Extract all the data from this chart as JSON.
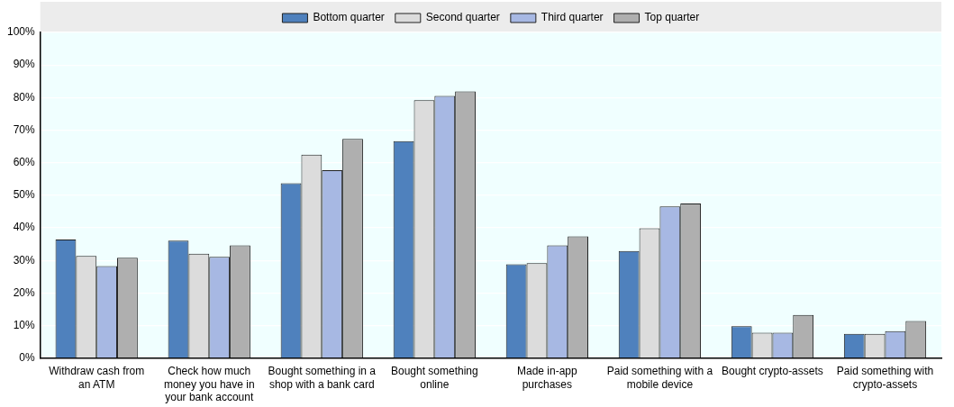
{
  "chart_data": {
    "type": "bar",
    "categories": [
      "Withdraw cash from an ATM",
      "Check how much money you have in your bank account",
      "Bought something in a shop with a bank card",
      "Bought something online",
      "Made in-app purchases",
      "Paid something with a mobile device",
      "Bought crypto-assets",
      "Paid something with crypto-assets"
    ],
    "series": [
      {
        "name": "Bottom quarter",
        "color": "#4f81bd",
        "values": [
          36.4,
          36.1,
          53.7,
          66.6,
          28.8,
          32.9,
          9.8,
          7.5
        ]
      },
      {
        "name": "Second quarter",
        "color": "#dcdcdc",
        "values": [
          31.4,
          32.1,
          62.5,
          79.2,
          29.2,
          39.9,
          7.8,
          7.5
        ]
      },
      {
        "name": "Third quarter",
        "color": "#a7b8e3",
        "values": [
          28.3,
          31.1,
          57.7,
          80.5,
          34.6,
          46.6,
          7.8,
          8.3
        ]
      },
      {
        "name": "Top quarter",
        "color": "#afafaf",
        "values": [
          30.8,
          34.6,
          67.3,
          81.9,
          37.4,
          47.5,
          13.3,
          11.4
        ]
      }
    ],
    "ylim": [
      0,
      100
    ],
    "yticks": [
      {
        "value": 0,
        "label": "0%"
      },
      {
        "value": 10,
        "label": "10%"
      },
      {
        "value": 20,
        "label": "20%"
      },
      {
        "value": 30,
        "label": "30%"
      },
      {
        "value": 40,
        "label": "40%"
      },
      {
        "value": 50,
        "label": "50%"
      },
      {
        "value": 60,
        "label": "60%"
      },
      {
        "value": 70,
        "label": "70%"
      },
      {
        "value": 80,
        "label": "80%"
      },
      {
        "value": 90,
        "label": "90%"
      },
      {
        "value": 100,
        "label": "100%"
      }
    ],
    "grid": "y",
    "legend": "top"
  }
}
